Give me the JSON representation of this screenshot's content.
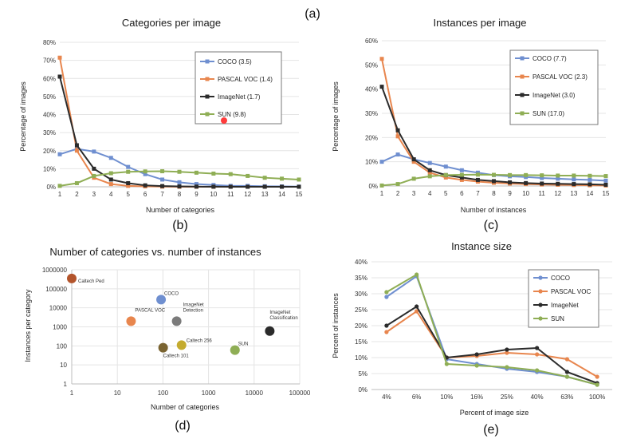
{
  "top_caption": "(a)",
  "marker_color": "#ff3b3b",
  "colors": {
    "COCO": "#6f8fd0",
    "PASCAL": "#e8864e",
    "ImageNet": "#2b2b2b",
    "SUN": "#8fae55",
    "Caltech Ped": "#b3542b",
    "Caltech 101": "#7a6431",
    "Caltech 256": "#c4ab2f",
    "ImageNetDet": "#7b7b7b"
  },
  "chart_data": [
    {
      "id": "b",
      "type": "line",
      "title": "Categories per image",
      "xlabel": "Number of categories",
      "ylabel": "Percentage of images",
      "caption": "(b)",
      "x": [
        1,
        2,
        3,
        4,
        5,
        6,
        7,
        8,
        9,
        10,
        11,
        12,
        13,
        14,
        15
      ],
      "ylim": [
        0,
        80
      ],
      "yticks": [
        "0%",
        "10%",
        "20%",
        "30%",
        "40%",
        "50%",
        "60%",
        "70%",
        "80%"
      ],
      "series": [
        {
          "name": "COCO (3.5)",
          "color": "#6f8fd0",
          "values": [
            18,
            21,
            19.5,
            16,
            11,
            7,
            4,
            2.5,
            1.5,
            1,
            0.5,
            0.5,
            0.3,
            0.2,
            0.1
          ]
        },
        {
          "name": "PASCAL VOC (1.4)",
          "color": "#e8864e",
          "values": [
            71.5,
            20,
            5,
            1.5,
            0.5,
            0.2,
            0.1,
            0,
            0,
            0,
            0,
            0,
            0,
            0,
            0
          ]
        },
        {
          "name": "ImageNet (1.7)",
          "color": "#2b2b2b",
          "values": [
            61,
            23,
            10,
            4,
            2,
            0.8,
            0.4,
            0.2,
            0.1,
            0.05,
            0,
            0,
            0,
            0,
            0
          ]
        },
        {
          "name": "SUN (9.8)",
          "color": "#8fae55",
          "values": [
            0.5,
            2,
            6,
            7.5,
            8.3,
            8.5,
            8.6,
            8.3,
            7.8,
            7.3,
            7,
            6,
            5,
            4.5,
            4
          ]
        }
      ]
    },
    {
      "id": "c",
      "type": "line",
      "title": "Instances per image",
      "xlabel": "Number of instances",
      "ylabel": "Percentage of images",
      "caption": "(c)",
      "x": [
        1,
        2,
        3,
        4,
        5,
        6,
        7,
        8,
        9,
        10,
        11,
        12,
        13,
        14,
        15
      ],
      "ylim": [
        0,
        60
      ],
      "yticks": [
        "0%",
        "10%",
        "20%",
        "30%",
        "40%",
        "50%",
        "60%"
      ],
      "series": [
        {
          "name": "COCO (7.7)",
          "color": "#6f8fd0",
          "values": [
            10,
            13,
            11,
            9.5,
            8,
            6.5,
            5.5,
            4.5,
            4,
            3.7,
            3.3,
            3,
            2.7,
            2.5,
            2.2
          ]
        },
        {
          "name": "PASCAL VOC (2.3)",
          "color": "#e8864e",
          "values": [
            52.5,
            20.5,
            10,
            5.5,
            3.5,
            2.5,
            1.8,
            1.3,
            1,
            0.8,
            0.6,
            0.5,
            0.4,
            0.3,
            0.2
          ]
        },
        {
          "name": "ImageNet (3.0)",
          "color": "#2b2b2b",
          "values": [
            41,
            23,
            11,
            6.5,
            4.5,
            3.5,
            2.5,
            2,
            1.5,
            1.2,
            1,
            0.9,
            0.8,
            0.7,
            0.5
          ]
        },
        {
          "name": "SUN (17.0)",
          "color": "#8fae55",
          "values": [
            0.2,
            0.8,
            3,
            4,
            4.5,
            4.6,
            4.7,
            4.6,
            4.5,
            4.5,
            4.4,
            4.3,
            4.3,
            4.2,
            4.1
          ]
        }
      ]
    },
    {
      "id": "d",
      "type": "scatter",
      "title": "Number of categories vs. number of instances",
      "xlabel": "Number of categories",
      "ylabel": "Instances per category",
      "caption": "(d)",
      "xscale": "log",
      "yscale": "log",
      "xticks": [
        "1",
        "10",
        "100",
        "1000",
        "10000",
        "100000"
      ],
      "yticks": [
        "1",
        "10",
        "100",
        "1000",
        "10000",
        "100000",
        "1000000"
      ],
      "points": [
        {
          "label": "Caltech Ped",
          "x": 1,
          "y": 350000,
          "color": "#b3542b"
        },
        {
          "label": "COCO",
          "x": 91,
          "y": 27000,
          "color": "#6f8fd0"
        },
        {
          "label": "PASCAL VOC",
          "x": 20,
          "y": 2000,
          "color": "#e8864e"
        },
        {
          "label": "ImageNet Detection",
          "x": 200,
          "y": 2000,
          "color": "#7b7b7b"
        },
        {
          "label": "Caltech 256",
          "x": 256,
          "y": 110,
          "color": "#c4ab2f"
        },
        {
          "label": "Caltech 101",
          "x": 101,
          "y": 80,
          "color": "#7a6431"
        },
        {
          "label": "SUN",
          "x": 3800,
          "y": 60,
          "color": "#8fae55"
        },
        {
          "label": "ImageNet Classification",
          "x": 22000,
          "y": 600,
          "color": "#2b2b2b"
        }
      ]
    },
    {
      "id": "e",
      "type": "line",
      "title": "Instance size",
      "xlabel": "Percent of image size",
      "ylabel": "Percent of instances",
      "caption": "(e)",
      "categories": [
        "4%",
        "6%",
        "10%",
        "16%",
        "25%",
        "40%",
        "63%",
        "100%"
      ],
      "ylim": [
        0,
        40
      ],
      "yticks": [
        "0%",
        "5%",
        "10%",
        "15%",
        "20%",
        "25%",
        "30%",
        "35%",
        "40%"
      ],
      "series": [
        {
          "name": "COCO",
          "color": "#6f8fd0",
          "values": [
            29,
            35.5,
            9.5,
            8,
            6.5,
            5.5,
            4,
            1.5
          ]
        },
        {
          "name": "PASCAL VOC",
          "color": "#e8864e",
          "values": [
            18,
            24.5,
            10,
            10.5,
            11.5,
            11,
            9.5,
            4
          ]
        },
        {
          "name": "ImageNet",
          "color": "#2b2b2b",
          "values": [
            20,
            26,
            10,
            11,
            12.5,
            13,
            5.5,
            2
          ]
        },
        {
          "name": "SUN",
          "color": "#8fae55",
          "values": [
            30.5,
            36,
            8,
            7.5,
            7,
            6,
            4,
            1.5
          ]
        }
      ]
    }
  ]
}
